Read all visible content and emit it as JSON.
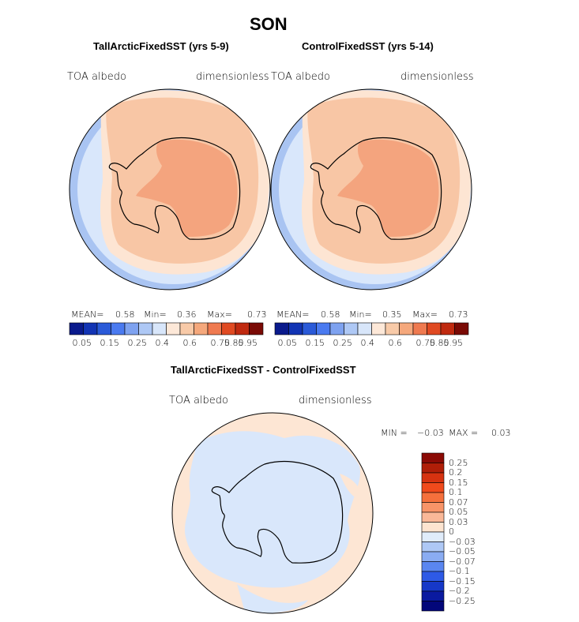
{
  "season": "SON",
  "panels": [
    {
      "title": "TallArcticFixedSST (yrs 5-9)",
      "var_label": "TOA albedo",
      "units_label": "dimensionless",
      "stats": {
        "mean_label": "MEAN=",
        "mean": "0.58",
        "min_label": "Min=",
        "min": "0.36",
        "max_label": "Max=",
        "max": "0.73"
      }
    },
    {
      "title": "ControlFixedSST (yrs 5-14)",
      "var_label": "TOA albedo",
      "units_label": "dimensionless",
      "stats": {
        "mean_label": "MEAN=",
        "mean": "0.58",
        "min_label": "Min=",
        "min": "0.35",
        "max_label": "Max=",
        "max": "0.73"
      }
    }
  ],
  "colorbar_labels": [
    "0.05",
    "0.15",
    "0.25",
    "0.4",
    "0.6",
    "0.75",
    "0.85",
    "0.95"
  ],
  "colorbar_colors": [
    "#0a1a8c",
    "#1234b4",
    "#2a5ad8",
    "#4a7af0",
    "#7ea2f0",
    "#aec8f5",
    "#d8e6fa",
    "#fde8d8",
    "#f8caa8",
    "#f5a87c",
    "#ef7a50",
    "#e04a22",
    "#c02a10",
    "#7a0a05"
  ],
  "diff": {
    "title": "TallArcticFixedSST - ControlFixedSST",
    "var_label": "TOA albedo",
    "units_label": "dimensionless",
    "min_label": "MIN =",
    "min": "−0.03",
    "max_label": "MAX =",
    "max": "0.03",
    "legend_labels": [
      "0.25",
      "0.2",
      "0.15",
      "0.1",
      "0.07",
      "0.05",
      "0.03",
      "0",
      "−0.03",
      "−0.05",
      "−0.07",
      "−0.1",
      "−0.15",
      "−0.2",
      "−0.25"
    ],
    "legend_colors": [
      "#8b0a05",
      "#b01e08",
      "#d63210",
      "#f04a1c",
      "#f5703c",
      "#f89468",
      "#fab898",
      "#fde4d0",
      "#e0ecfa",
      "#aec8f5",
      "#8aacf2",
      "#5a86f0",
      "#2e5ae6",
      "#1638c8",
      "#0a1aa0",
      "#03077a"
    ]
  },
  "map_colors": {
    "ocean_outer": "#a9c4f2",
    "ocean_mid": "#d9e7fb",
    "sea_ice_outer": "#fde5d3",
    "sea_ice_inner": "#f8c6a5",
    "plateau": "#f4a47e",
    "diff_bg": "#fde6d4",
    "diff_neg": "#d9e7fb"
  }
}
